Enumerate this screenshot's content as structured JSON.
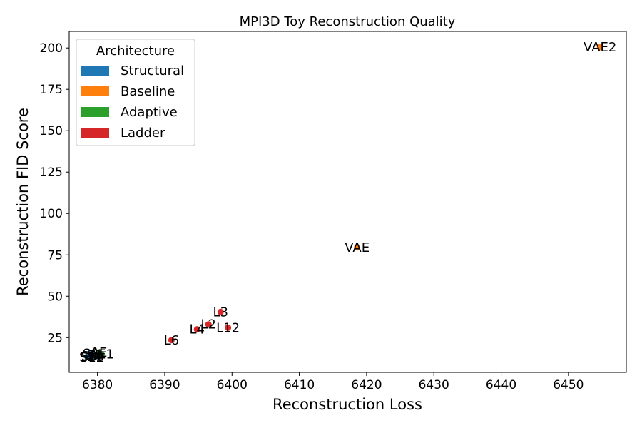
{
  "chart_data": {
    "type": "scatter",
    "title": "MPI3D Toy Reconstruction Quality",
    "xlabel": "Reconstruction Loss",
    "ylabel": "Reconstruction FID Score",
    "xlim": [
      6375.8,
      6458.6
    ],
    "ylim": [
      4.0,
      210.0
    ],
    "x_ticks": [
      6380,
      6390,
      6400,
      6410,
      6420,
      6430,
      6440,
      6450
    ],
    "y_ticks": [
      25,
      50,
      75,
      100,
      125,
      150,
      175,
      200
    ],
    "grid": false,
    "legend": {
      "title": "Architecture",
      "placement": "top-left",
      "entries": [
        "Structural",
        "Baseline",
        "Adaptive",
        "Ladder"
      ]
    },
    "colors": {
      "Structural": "#1f77b4",
      "Baseline": "#ff7f0e",
      "Adaptive": "#2ca02c",
      "Ladder": "#d62728"
    },
    "points": [
      {
        "label": "VAE2",
        "x": 6454.7,
        "y": 200.5,
        "group": "Baseline"
      },
      {
        "label": "VAE",
        "x": 6418.6,
        "y": 79.5,
        "group": "Baseline"
      },
      {
        "label": "L3",
        "x": 6398.3,
        "y": 40.5,
        "group": "Ladder"
      },
      {
        "label": "L2",
        "x": 6396.5,
        "y": 33.0,
        "group": "Ladder"
      },
      {
        "label": "L12",
        "x": 6399.4,
        "y": 31.0,
        "group": "Ladder"
      },
      {
        "label": "L4",
        "x": 6394.8,
        "y": 30.0,
        "group": "Ladder"
      },
      {
        "label": "L6",
        "x": 6391.0,
        "y": 23.5,
        "group": "Ladder"
      },
      {
        "label": "AE1",
        "x": 6380.6,
        "y": 15.0,
        "group": "Adaptive"
      },
      {
        "label": "AE",
        "x": 6380.2,
        "y": 16.0,
        "group": "Adaptive"
      },
      {
        "label": "S1",
        "x": 6379.6,
        "y": 14.5,
        "group": "Structural"
      },
      {
        "label": "S12",
        "x": 6379.2,
        "y": 13.0,
        "group": "Structural"
      },
      {
        "label": "S3",
        "x": 6378.8,
        "y": 14.0,
        "group": "Structural"
      },
      {
        "label": "S2",
        "x": 6378.5,
        "y": 13.5,
        "group": "Structural"
      },
      {
        "label": "S4",
        "x": 6379.0,
        "y": 15.5,
        "group": "Structural"
      },
      {
        "label": "S6",
        "x": 6379.8,
        "y": 13.8,
        "group": "Structural"
      }
    ]
  }
}
